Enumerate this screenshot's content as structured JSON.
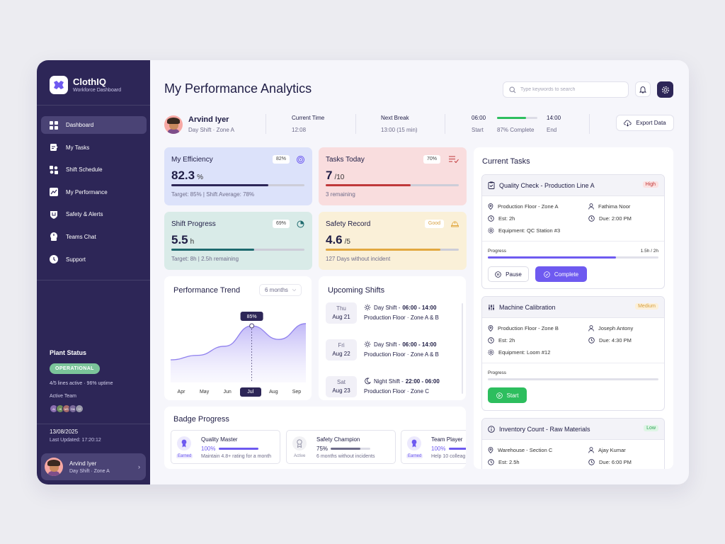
{
  "brand": {
    "name": "ClothIQ",
    "subtitle": "Workforce Dashboard"
  },
  "nav": [
    {
      "label": "Dashboard",
      "icon": "grid-icon",
      "active": true
    },
    {
      "label": "My Tasks",
      "icon": "clipboard-icon"
    },
    {
      "label": "Shift Schedule",
      "icon": "schedule-icon"
    },
    {
      "label": "My Performance",
      "icon": "chart-icon"
    },
    {
      "label": "Safety & Alerts",
      "icon": "shield-icon"
    },
    {
      "label": "Teams Chat",
      "icon": "chat-icon"
    },
    {
      "label": "Support",
      "icon": "support-icon"
    }
  ],
  "plant": {
    "title": "Plant Status",
    "status": "OPERATIONAL",
    "lines": "4/5 lines active",
    "uptime": "96% uptime",
    "team_label": "Active Team",
    "team": [
      "AI",
      "JK",
      "MS",
      "SM",
      "+2"
    ],
    "date": "13/08/2025",
    "updated": "Last Updated: 17:20:12"
  },
  "profile": {
    "name": "Arvind Iyer",
    "shift": "Day Shift · Zone A"
  },
  "header": {
    "title": "My Performance Analytics",
    "search_placeholder": "Type keywords to search",
    "export_label": "Export Data"
  },
  "user_bar": {
    "name": "Arvind Iyer",
    "shift": "Day Shift · Zone A",
    "current_time_label": "Current Time",
    "current_time": "12:08",
    "next_break_label": "Next Break",
    "next_break": "13:00 (15 min)",
    "shift_start_time": "06:00",
    "shift_end_time": "14:00",
    "start_label": "Start",
    "end_label": "End",
    "complete_text": "87% Complete",
    "shift_fraction": 0.72
  },
  "stats": {
    "efficiency": {
      "title": "My Efficiency",
      "pill": "82%",
      "value": "82.3",
      "unit": "%",
      "note": "Target: 85% | Shift Average: 78%",
      "fraction": 0.73,
      "color": "#2D2657",
      "bg": "#DCE2FA"
    },
    "tasks": {
      "title": "Tasks Today",
      "pill": "70%",
      "value": "7",
      "unit": "/10",
      "note": "3 remaining",
      "fraction": 0.64,
      "color": "#C0383A",
      "bg": "#F9DDDE"
    },
    "shift": {
      "title": "Shift Progress",
      "pill": "69%",
      "value": "5.5",
      "unit": "h",
      "note": "Target: 8h | 2.5h remaining",
      "fraction": 0.62,
      "color": "#1E6A6E",
      "bg": "#D9EBE8"
    },
    "safety": {
      "title": "Safety Record",
      "pill": "Good",
      "value": "4.6",
      "unit": "/5",
      "note": "127 Days without incident",
      "fraction": 0.86,
      "color": "#E2A840",
      "bg": "#FAF0D8"
    }
  },
  "trend": {
    "title": "Performance Trend",
    "range": "6 months",
    "months": [
      "Apr",
      "May",
      "Jun",
      "Jul",
      "Aug",
      "Sep"
    ],
    "selected": "Jul",
    "tooltip": "85%"
  },
  "chart_data": {
    "type": "area",
    "x": [
      "Apr",
      "May",
      "Jun",
      "Jul",
      "Aug",
      "Sep"
    ],
    "values": [
      70,
      72,
      76,
      85,
      79,
      86
    ],
    "highlight": {
      "x": "Jul",
      "label": "85%"
    }
  },
  "upcoming": {
    "title": "Upcoming Shifts",
    "items": [
      {
        "weekday": "Thu",
        "date": "Aug 21",
        "type": "Day Shift",
        "time": "06:00 - 14:00",
        "place": "Production Floor",
        "zone": "Zone A & B",
        "icon": "sun-icon"
      },
      {
        "weekday": "Fri",
        "date": "Aug 22",
        "type": "Day Shift",
        "time": "06:00 - 14:00",
        "place": "Production Floor",
        "zone": "Zone A & B",
        "icon": "sun-icon"
      },
      {
        "weekday": "Sat",
        "date": "Aug 23",
        "type": "Night Shift",
        "time": "22:00 - 06:00",
        "place": "Production Floor",
        "zone": "Zone C",
        "icon": "moon-icon"
      }
    ]
  },
  "badges": {
    "title": "Badge Progress",
    "items": [
      {
        "name": "Quality Master",
        "pct": "100%",
        "fraction": 1.0,
        "desc": "Maintain 4.8+ rating for a month",
        "status": "Earned"
      },
      {
        "name": "Safety Champion",
        "pct": "75%",
        "fraction": 0.75,
        "desc": "6 months without incidents",
        "status": "Active"
      },
      {
        "name": "Team Player",
        "pct": "100%",
        "fraction": 1.0,
        "desc": "Help 10 colleag",
        "status": "Earned"
      }
    ]
  },
  "tasks": {
    "title": "Current Tasks",
    "items": [
      {
        "title": "Quality Check - Production Line A",
        "priority": "High",
        "location": "Production Floor - Zone A",
        "person": "Fathima Noor",
        "est": "Est: 2h",
        "due": "Due: 2:00 PM",
        "equipment": "Equipment: QC Station #3",
        "progress_label": "Progress",
        "progress_text": "1.5h / 2h",
        "fraction": 0.75,
        "buttons": [
          "Pause",
          "Complete"
        ]
      },
      {
        "title": "Machine Calibration",
        "priority": "Medium",
        "location": "Production Floor - Zone B",
        "person": "Joseph Antony",
        "est": "Est: 2h",
        "due": "Due: 4:30 PM",
        "equipment": "Equipment: Loom #12",
        "progress_label": "Progress",
        "fraction": 0,
        "buttons": [
          "Start"
        ]
      },
      {
        "title": "Inventory Count - Raw Materials",
        "priority": "Low",
        "location": "Warehouse - Section C",
        "person": "Ajay Kumar",
        "est": "Est: 2.5h",
        "due": "Due: 6:00 PM"
      }
    ]
  }
}
